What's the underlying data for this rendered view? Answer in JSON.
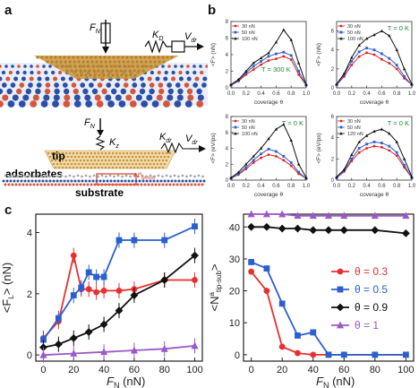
{
  "figure": {
    "panel_labels": {
      "a": "a",
      "b": "b",
      "c": "c"
    }
  },
  "schematic": {
    "top": {
      "force_label": "F",
      "force_sub": "N",
      "spring_label": "K",
      "spring_sub": "D",
      "velocity_label": "V",
      "velocity_sub": "dr"
    },
    "bottom": {
      "force_label": "F",
      "force_sub": "N",
      "kz_label": "K",
      "kz_sub": "z",
      "kdr_label": "K",
      "kdr_sub": "dr",
      "vdr_label": "V",
      "vdr_sub": "dr",
      "tip_label": "tip",
      "adsorbates_label": "adsorbates",
      "substrate_label": "substrate",
      "n_label": "N",
      "n_sup": "a",
      "n_sub": "tip-sub"
    },
    "colors": {
      "tip": "#c8963c",
      "substrate_blue": "#2b4fa8",
      "substrate_red": "#d4573b",
      "highlight_box": "#e04020"
    }
  },
  "chart_data": [
    {
      "id": "b1",
      "type": "line",
      "annotation": "T = 300 K",
      "xlabel": "coverage θ",
      "ylabel": "<F> (nN)",
      "xlim": [
        0,
        1
      ],
      "ylim": [
        0,
        8
      ],
      "xticks": [
        0.0,
        0.2,
        0.4,
        0.6,
        0.8,
        1.0
      ],
      "yticks": [
        0,
        2,
        4,
        6,
        8
      ],
      "x": [
        0.0,
        0.1,
        0.2,
        0.3,
        0.4,
        0.5,
        0.6,
        0.7,
        0.8,
        0.9,
        1.0
      ],
      "series": [
        {
          "name": "30 nN",
          "color": "#e02020",
          "values": [
            0.3,
            0.8,
            1.6,
            2.2,
            2.8,
            3.3,
            3.5,
            3.8,
            3.4,
            1.6,
            0.3
          ]
        },
        {
          "name": "50 nN",
          "color": "#2f5fd0",
          "values": [
            0.3,
            0.9,
            1.8,
            2.6,
            3.2,
            3.8,
            4.1,
            4.3,
            3.9,
            2.0,
            0.3
          ]
        },
        {
          "name": "100 nN",
          "color": "#111111",
          "values": [
            0.4,
            1.0,
            2.0,
            3.0,
            3.6,
            4.2,
            5.5,
            7.0,
            5.8,
            3.0,
            0.4
          ]
        }
      ]
    },
    {
      "id": "b2",
      "type": "line",
      "annotation": "T = 0 K",
      "xlabel": "coverage θ",
      "ylabel": "<F> (nN)",
      "xlim": [
        0,
        1
      ],
      "ylim": [
        0,
        7
      ],
      "xticks": [
        0.0,
        0.2,
        0.4,
        0.6,
        0.8,
        1.0
      ],
      "yticks": [
        0,
        2,
        4,
        6
      ],
      "x": [
        0.0,
        0.1,
        0.2,
        0.3,
        0.4,
        0.5,
        0.6,
        0.7,
        0.8,
        0.9,
        1.0
      ],
      "series": [
        {
          "name": "30 nN",
          "color": "#e02020",
          "values": [
            0.3,
            1.2,
            2.4,
            3.3,
            3.7,
            3.5,
            3.0,
            2.6,
            2.0,
            1.0,
            0.3
          ]
        },
        {
          "name": "50 nN",
          "color": "#2f5fd0",
          "values": [
            0.3,
            1.4,
            2.8,
            3.8,
            4.2,
            4.0,
            3.6,
            3.1,
            2.4,
            1.2,
            0.3
          ]
        },
        {
          "name": "100 nN",
          "color": "#111111",
          "values": [
            0.4,
            1.5,
            3.2,
            4.5,
            5.2,
            5.6,
            6.0,
            5.5,
            4.0,
            2.0,
            0.4
          ]
        }
      ]
    },
    {
      "id": "b3",
      "type": "line",
      "annotation": "T = 0 K",
      "xlabel": "coverage θ",
      "ylabel": "<F> (eV/ps)",
      "xlim": [
        0,
        1
      ],
      "ylim": [
        0,
        8
      ],
      "xticks": [
        0.0,
        0.2,
        0.4,
        0.6,
        0.8,
        1.0
      ],
      "yticks": [
        0,
        2,
        4,
        6,
        8
      ],
      "x": [
        0.0,
        0.1,
        0.2,
        0.3,
        0.4,
        0.5,
        0.6,
        0.7,
        0.8,
        0.9,
        1.0
      ],
      "series": [
        {
          "name": "30 nN",
          "color": "#e02020",
          "values": [
            0.2,
            0.7,
            1.4,
            2.2,
            2.8,
            3.2,
            3.0,
            2.5,
            1.8,
            0.8,
            0.2
          ]
        },
        {
          "name": "50 nN",
          "color": "#2f5fd0",
          "values": [
            0.2,
            0.8,
            1.6,
            2.5,
            3.3,
            3.9,
            3.6,
            3.0,
            2.2,
            1.0,
            0.2
          ]
        },
        {
          "name": "100 nN",
          "color": "#111111",
          "values": [
            0.3,
            1.0,
            2.0,
            3.0,
            4.0,
            5.2,
            6.4,
            7.0,
            5.0,
            2.0,
            0.3
          ]
        }
      ]
    },
    {
      "id": "b4",
      "type": "line",
      "annotation": "T = 0 K",
      "xlabel": "coverage θ",
      "ylabel": "<F> (eV/ps)",
      "xlim": [
        0,
        1
      ],
      "ylim": [
        0,
        6
      ],
      "xticks": [
        0.0,
        0.2,
        0.4,
        0.6,
        0.8,
        1.0
      ],
      "yticks": [
        0,
        2,
        4,
        6
      ],
      "x": [
        0.0,
        0.1,
        0.2,
        0.3,
        0.4,
        0.5,
        0.6,
        0.7,
        0.8,
        0.9,
        1.0
      ],
      "series": [
        {
          "name": "30 nN",
          "color": "#e02020",
          "values": [
            0.2,
            0.8,
            1.8,
            2.6,
            3.0,
            3.2,
            3.1,
            2.8,
            2.3,
            1.2,
            0.2
          ]
        },
        {
          "name": "50 nN",
          "color": "#2f5fd0",
          "values": [
            0.2,
            0.9,
            2.0,
            3.0,
            3.4,
            3.6,
            3.5,
            3.2,
            2.6,
            1.4,
            0.2
          ]
        },
        {
          "name": "120 nN",
          "color": "#111111",
          "values": [
            0.3,
            1.0,
            2.4,
            3.6,
            4.2,
            4.6,
            4.8,
            4.4,
            3.6,
            2.0,
            0.3
          ]
        }
      ]
    },
    {
      "id": "c1",
      "type": "line",
      "xlabel": "F",
      "xlabel_sub": "N",
      "xlabel_unit": " (nN)",
      "ylabel": "<F",
      "ylabel_sub": "L",
      "ylabel_unit": "> (nN)",
      "xlim": [
        -5,
        105
      ],
      "ylim": [
        -0.2,
        4.6
      ],
      "xticks": [
        0,
        20,
        40,
        60,
        80,
        100
      ],
      "yticks": [
        0,
        2,
        4
      ],
      "series": [
        {
          "name": "θ = 0.3",
          "color": "#e8302f",
          "marker": "circle",
          "x": [
            0,
            10,
            20,
            25,
            30,
            35,
            40,
            50,
            60,
            80,
            100
          ],
          "values": [
            0.55,
            1.1,
            3.25,
            2.15,
            2.15,
            2.05,
            2.1,
            2.1,
            2.15,
            2.45,
            2.45
          ]
        },
        {
          "name": "θ = 0.5",
          "color": "#2b5fcf",
          "marker": "square",
          "x": [
            0,
            10,
            20,
            25,
            30,
            35,
            40,
            50,
            60,
            80,
            100
          ],
          "values": [
            0.5,
            1.2,
            1.95,
            2.2,
            2.7,
            2.55,
            2.55,
            3.75,
            3.75,
            3.75,
            4.2
          ]
        },
        {
          "name": "θ = 0.9",
          "color": "#111111",
          "marker": "diamond",
          "x": [
            0,
            10,
            20,
            30,
            40,
            50,
            60,
            80,
            100
          ],
          "values": [
            0.25,
            0.35,
            0.55,
            0.75,
            1.0,
            1.45,
            1.95,
            2.45,
            3.25
          ]
        },
        {
          "name": "θ = 1",
          "color": "#9b59c8",
          "marker": "triangle",
          "x": [
            0,
            20,
            40,
            60,
            80,
            100
          ],
          "values": [
            0.0,
            0.05,
            0.1,
            0.15,
            0.2,
            0.3
          ]
        }
      ]
    },
    {
      "id": "c2",
      "type": "line",
      "xlabel": "F",
      "xlabel_sub": "N",
      "xlabel_unit": " (nN)",
      "ylabel": "<N",
      "ylabel_sup": "a",
      "ylabel_sub": "tip-sub",
      "ylabel_unit": ">",
      "xlim": [
        -5,
        105
      ],
      "ylim": [
        -2,
        44
      ],
      "xticks": [
        0,
        20,
        40,
        60,
        80,
        100
      ],
      "yticks": [
        0,
        10,
        20,
        30,
        40
      ],
      "legend_position": "center-right",
      "series": [
        {
          "name": "θ = 0.3",
          "color": "#e8302f",
          "marker": "circle",
          "x": [
            0,
            10,
            20,
            30,
            40,
            50,
            60,
            80,
            100
          ],
          "values": [
            26,
            20,
            2.5,
            0.5,
            0,
            0,
            0,
            0,
            0
          ]
        },
        {
          "name": "θ = 0.5",
          "color": "#2b5fcf",
          "marker": "square",
          "x": [
            0,
            10,
            20,
            30,
            40,
            50,
            60,
            80,
            100
          ],
          "values": [
            29,
            27,
            16,
            6,
            7,
            0,
            0,
            0,
            0
          ]
        },
        {
          "name": "θ = 0.9",
          "color": "#111111",
          "marker": "diamond",
          "x": [
            0,
            10,
            20,
            30,
            40,
            50,
            60,
            80,
            100
          ],
          "values": [
            40,
            40,
            39.5,
            39.5,
            39,
            39,
            39,
            39,
            38
          ]
        },
        {
          "name": "θ = 1",
          "color": "#9b59c8",
          "marker": "triangle",
          "x": [
            0,
            10,
            20,
            30,
            40,
            50,
            60,
            80,
            100
          ],
          "values": [
            44,
            44,
            44,
            43.5,
            43.5,
            43.5,
            43.5,
            43.5,
            43.5
          ]
        }
      ]
    }
  ]
}
